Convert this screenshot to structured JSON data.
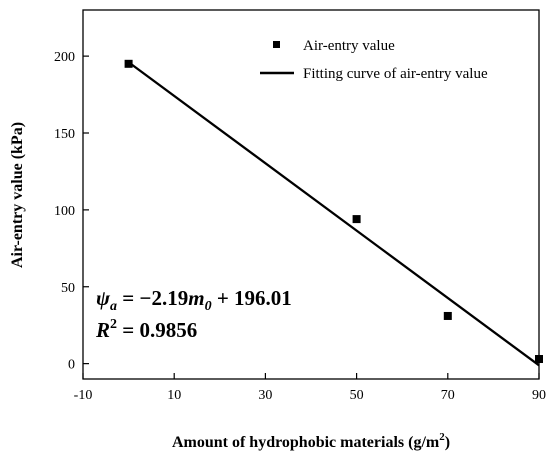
{
  "chart_data": {
    "type": "scatter",
    "xlabel": "Amount of hydrophobic materials (g/m",
    "xlabel_sup": "2",
    "xlabel_end": ")",
    "ylabel": "Air-entry value (kPa)",
    "xlim": [
      -10,
      90
    ],
    "ylim": [
      -10,
      230
    ],
    "x_ticks": [
      -10,
      10,
      30,
      50,
      70,
      90
    ],
    "y_ticks": [
      0,
      50,
      100,
      150,
      200
    ],
    "legend_position": "top-right",
    "grid": false,
    "series": [
      {
        "name": "Air-entry value",
        "kind": "points",
        "color": "#000000",
        "x": [
          0,
          50,
          70,
          90
        ],
        "y": [
          195,
          94,
          31,
          3
        ]
      },
      {
        "name": "Fitting curve of air-entry value",
        "kind": "line",
        "color": "#000000",
        "x": [
          0,
          90
        ],
        "y": [
          196.01,
          -1.09
        ]
      }
    ],
    "annotation": {
      "eq_lhs": "ψ",
      "eq_lhs_sub": "a",
      "eq_mid": " = −2.19",
      "eq_var": "m",
      "eq_var_sub": "0",
      "eq_rhs": " + 196.01",
      "r2_label": "R",
      "r2_sup": "2",
      "r2_value": " = 0.9856"
    }
  }
}
